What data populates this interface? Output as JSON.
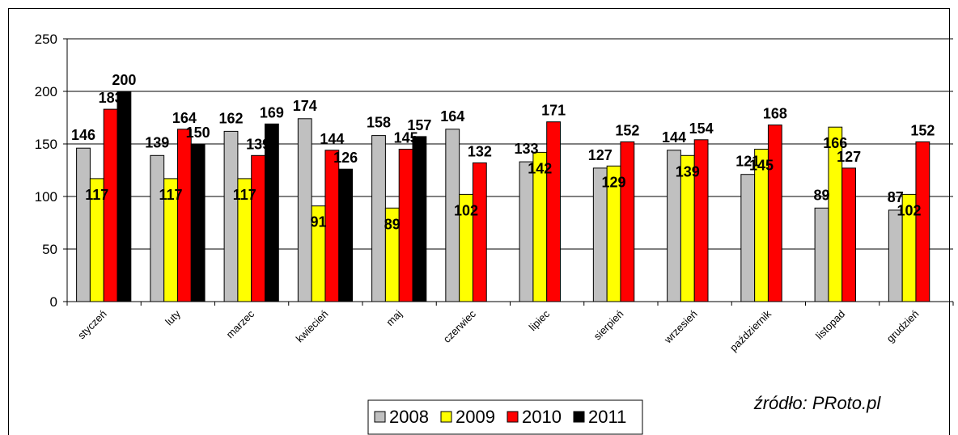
{
  "chart_data": {
    "type": "bar",
    "categories": [
      "styczeń",
      "luty",
      "marzec",
      "kwiecień",
      "maj",
      "czerwiec",
      "lipiec",
      "sierpień",
      "wrzesień",
      "październik",
      "listopad",
      "grudzień"
    ],
    "series": [
      {
        "name": "2008",
        "color": "#c0c0c0",
        "values": [
          146,
          139,
          162,
          174,
          158,
          164,
          133,
          127,
          144,
          121,
          89,
          87
        ]
      },
      {
        "name": "2009",
        "color": "#ffff00",
        "values": [
          117,
          117,
          117,
          91,
          89,
          102,
          142,
          129,
          139,
          145,
          166,
          102
        ]
      },
      {
        "name": "2010",
        "color": "#ff0000",
        "values": [
          183,
          164,
          139,
          144,
          145,
          132,
          171,
          152,
          154,
          168,
          127,
          152
        ]
      },
      {
        "name": "2011",
        "color": "#000000",
        "values": [
          200,
          150,
          169,
          126,
          157,
          null,
          null,
          null,
          null,
          null,
          null,
          null
        ]
      }
    ],
    "yticks": [
      "0",
      "50",
      "100",
      "150",
      "200",
      "250"
    ],
    "ylim": [
      0,
      250
    ],
    "grid": true,
    "legend_position": "bottom-center",
    "source_text": "źródło: PRoto.pl"
  }
}
